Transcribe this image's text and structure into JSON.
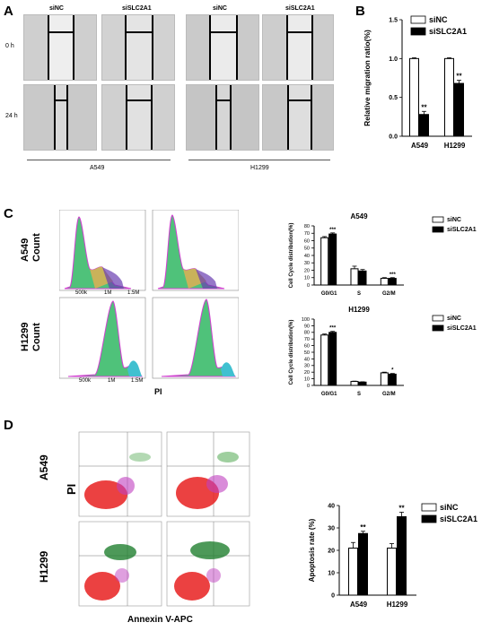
{
  "panels": {
    "a": "A",
    "b": "B",
    "c": "C",
    "d": "D"
  },
  "panel_a": {
    "cond_labels": [
      "siNC",
      "siSLC2A1",
      "siNC",
      "siSLC2A1"
    ],
    "time_labels": [
      "0 h",
      "24 h"
    ],
    "cell_lines": [
      "A549",
      "H1299"
    ]
  },
  "panel_c": {
    "row_labels": [
      "A549\nCount",
      "H1299\nCount"
    ],
    "row_label_a": "A549",
    "row_label_b": "H1299",
    "count_word": "Count",
    "x_title": "PI",
    "x_ticks": [
      "500k",
      "1M",
      "1.5M"
    ]
  },
  "panel_d": {
    "y_title": "PI",
    "x_title": "Annexin V-APC",
    "row_a": "A549",
    "row_b": "H1299"
  },
  "colors": {
    "siNC_fill": "#ffffff",
    "siSLC2A1_fill": "#000000",
    "stroke": "#000000"
  },
  "chart_data": [
    {
      "id": "migration",
      "type": "bar",
      "title": "",
      "ylabel": "Relative migration ratio(%)",
      "categories": [
        "A549",
        "H1299"
      ],
      "series": [
        {
          "name": "siNC",
          "values": [
            1.0,
            1.0
          ],
          "errors": [
            0.01,
            0.01
          ]
        },
        {
          "name": "siSLC2A1",
          "values": [
            0.28,
            0.68
          ],
          "errors": [
            0.04,
            0.04
          ]
        }
      ],
      "significance": [
        "**",
        "**"
      ],
      "ylim": [
        0,
        1.5
      ],
      "yticks": [
        "0.0",
        "0.5",
        "1.0",
        "1.5"
      ],
      "legend": "top-right"
    },
    {
      "id": "cycle_a549",
      "type": "bar",
      "title": "A549",
      "ylabel": "Cell Cycle distribution(%)",
      "categories": [
        "G0/G1",
        "S",
        "G2/M"
      ],
      "series": [
        {
          "name": "siNC",
          "values": [
            64,
            22,
            9
          ],
          "errors": [
            1.5,
            3.5,
            1
          ]
        },
        {
          "name": "siSLC2A1",
          "values": [
            69,
            19,
            9
          ],
          "errors": [
            1.5,
            2,
            1
          ]
        }
      ],
      "significance": [
        "***",
        "",
        "***"
      ],
      "ylim": [
        0,
        80
      ],
      "yticks": [
        "0",
        "10",
        "20",
        "30",
        "40",
        "50",
        "60",
        "70",
        "80"
      ],
      "legend": "top-right"
    },
    {
      "id": "cycle_h1299",
      "type": "bar",
      "title": "H1299",
      "ylabel": "Cell Cycle distribution(%)",
      "categories": [
        "G0/G1",
        "S",
        "G2/M"
      ],
      "series": [
        {
          "name": "siNC",
          "values": [
            76,
            6,
            19
          ],
          "errors": [
            1.5,
            0.5,
            1
          ]
        },
        {
          "name": "siSLC2A1",
          "values": [
            80,
            5,
            17
          ],
          "errors": [
            1.5,
            0.5,
            1
          ]
        }
      ],
      "significance": [
        "***",
        "",
        "*"
      ],
      "ylim": [
        0,
        100
      ],
      "yticks": [
        "0",
        "10",
        "20",
        "30",
        "40",
        "50",
        "60",
        "70",
        "80",
        "90",
        "100"
      ],
      "legend": "top-right"
    },
    {
      "id": "apoptosis",
      "type": "bar",
      "title": "",
      "ylabel": "Apoptosis rate (%)",
      "categories": [
        "A549",
        "H1299"
      ],
      "series": [
        {
          "name": "siNC",
          "values": [
            21,
            21
          ],
          "errors": [
            2.5,
            2
          ]
        },
        {
          "name": "siSLC2A1",
          "values": [
            27.5,
            35
          ],
          "errors": [
            1,
            2
          ]
        }
      ],
      "significance": [
        "**",
        "**"
      ],
      "ylim": [
        0,
        40
      ],
      "yticks": [
        "0",
        "10",
        "20",
        "30",
        "40"
      ],
      "legend": "top-right"
    }
  ]
}
